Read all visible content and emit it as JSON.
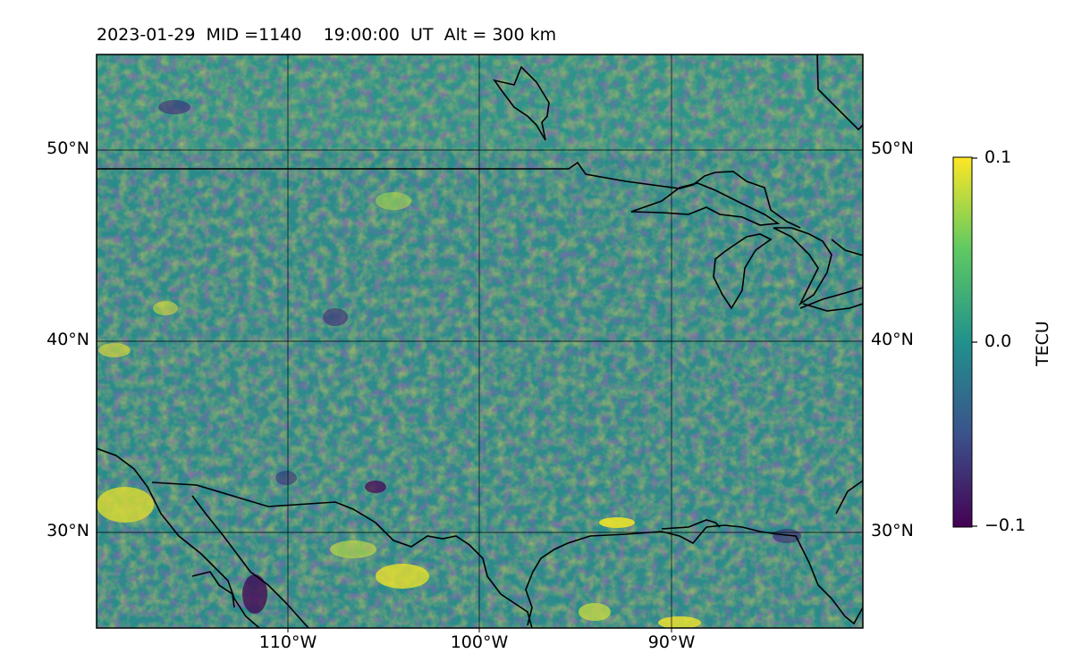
{
  "title": "2023-01-29  MID =1140    19:00:00  UT  Alt = 300 km",
  "map": {
    "lat_range": [
      25,
      55
    ],
    "lon_range": [
      -120,
      -80
    ],
    "lat_ticks": [
      "50°N",
      "40°N",
      "30°N"
    ],
    "lon_ticks": [
      "110°W",
      "100°W",
      "90°W"
    ],
    "gridlines": true,
    "field": "TEC perturbation",
    "colormap": "viridis"
  },
  "colorbar": {
    "label": "TECU",
    "max_label": "0.1",
    "mid_label": "0.0",
    "min_label": "−0.1",
    "range": [
      -0.1,
      0.1
    ],
    "colors": [
      "#440154",
      "#3b528b",
      "#21918c",
      "#5ec962",
      "#fde725"
    ]
  }
}
